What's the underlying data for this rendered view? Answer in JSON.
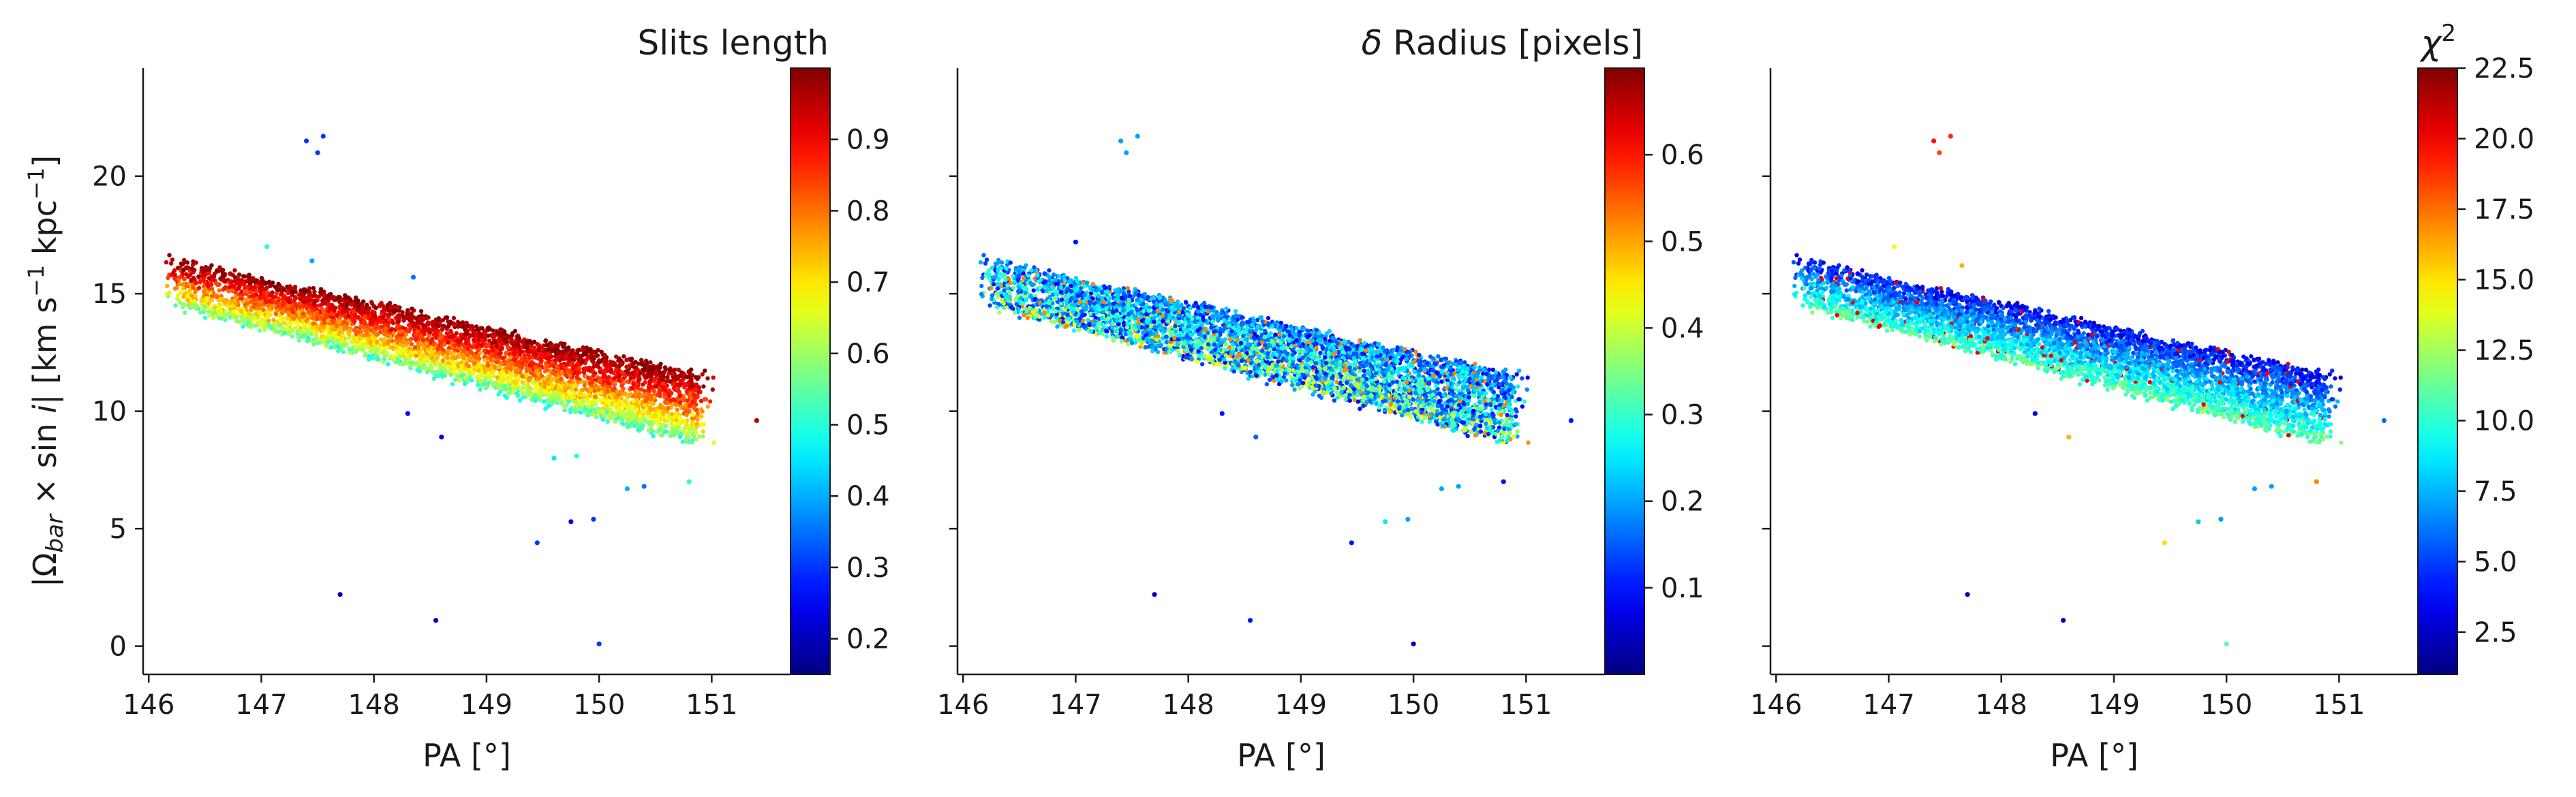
{
  "chart_data": [
    {
      "type": "scatter",
      "panel": "left",
      "xlabel": "PA [°]",
      "ylabel": "|Ω_bar × sin i|   [km s⁻¹ kpc⁻¹]",
      "xlim": [
        145.95,
        151.7
      ],
      "ylim": [
        -1.2,
        24.6
      ],
      "xticks": [
        "146",
        "147",
        "148",
        "149",
        "150",
        "151"
      ],
      "yticks": [
        "0",
        "5",
        "10",
        "15",
        "20"
      ],
      "colorbar": {
        "title": "Slits length",
        "range": [
          0.15,
          1.0
        ],
        "ticks": [
          "0.2",
          "0.3",
          "0.4",
          "0.5",
          "0.6",
          "0.7",
          "0.8",
          "0.9"
        ],
        "colormap": "jet",
        "trend": "increases with y"
      },
      "band": {
        "x_range": [
          146.2,
          151.4
        ],
        "y_top_start": 16.5,
        "y_top_end": 11.0,
        "y_bottom_start": 14.5,
        "y_bottom_end": 8.0,
        "n_points": 4500
      },
      "outliers": [
        {
          "x": 147.4,
          "y": 21.5,
          "c": 0.3
        },
        {
          "x": 147.5,
          "y": 21.0,
          "c": 0.3
        },
        {
          "x": 147.55,
          "y": 21.7,
          "c": 0.3
        },
        {
          "x": 147.7,
          "y": 2.2,
          "c": 0.2
        },
        {
          "x": 148.55,
          "y": 1.1,
          "c": 0.2
        },
        {
          "x": 150.0,
          "y": 0.1,
          "c": 0.3
        },
        {
          "x": 149.45,
          "y": 4.4,
          "c": 0.3
        },
        {
          "x": 149.75,
          "y": 5.3,
          "c": 0.25
        },
        {
          "x": 149.95,
          "y": 5.4,
          "c": 0.3
        },
        {
          "x": 148.3,
          "y": 9.9,
          "c": 0.25
        },
        {
          "x": 148.6,
          "y": 8.9,
          "c": 0.25
        },
        {
          "x": 150.25,
          "y": 6.7,
          "c": 0.4
        },
        {
          "x": 150.4,
          "y": 6.8,
          "c": 0.35
        },
        {
          "x": 150.8,
          "y": 7.0,
          "c": 0.5
        },
        {
          "x": 151.4,
          "y": 9.6,
          "c": 0.95
        },
        {
          "x": 147.05,
          "y": 17.0,
          "c": 0.5
        },
        {
          "x": 147.45,
          "y": 16.4,
          "c": 0.4
        },
        {
          "x": 148.35,
          "y": 15.7,
          "c": 0.35
        },
        {
          "x": 149.6,
          "y": 8.0,
          "c": 0.45
        },
        {
          "x": 149.8,
          "y": 8.1,
          "c": 0.5
        }
      ]
    },
    {
      "type": "scatter",
      "panel": "middle",
      "xlabel": "PA [°]",
      "ylabel": "",
      "xlim": [
        145.95,
        151.7
      ],
      "ylim": [
        -1.2,
        24.6
      ],
      "xticks": [
        "146",
        "147",
        "148",
        "149",
        "150",
        "151"
      ],
      "yticks": [
        "",
        "",
        "",
        "",
        ""
      ],
      "colorbar": {
        "title": "δ Radius [pixels]",
        "range": [
          0.0,
          0.7
        ],
        "ticks": [
          "0.1",
          "0.2",
          "0.3",
          "0.4",
          "0.5",
          "0.6"
        ],
        "colormap": "jet",
        "trend": "mostly low, higher near lower edge"
      },
      "band": {
        "x_range": [
          146.2,
          151.4
        ],
        "y_top_start": 16.5,
        "y_top_end": 11.0,
        "y_bottom_start": 14.5,
        "y_bottom_end": 8.0,
        "n_points": 4500
      },
      "outliers": [
        {
          "x": 147.4,
          "y": 21.5,
          "c": 0.2
        },
        {
          "x": 147.45,
          "y": 21.0,
          "c": 0.2
        },
        {
          "x": 147.55,
          "y": 21.7,
          "c": 0.2
        },
        {
          "x": 147.7,
          "y": 2.2,
          "c": 0.05
        },
        {
          "x": 148.55,
          "y": 1.1,
          "c": 0.1
        },
        {
          "x": 150.0,
          "y": 0.1,
          "c": 0.05
        },
        {
          "x": 149.45,
          "y": 4.4,
          "c": 0.1
        },
        {
          "x": 149.75,
          "y": 5.3,
          "c": 0.25
        },
        {
          "x": 149.95,
          "y": 5.4,
          "c": 0.2
        },
        {
          "x": 148.3,
          "y": 9.9,
          "c": 0.1
        },
        {
          "x": 148.6,
          "y": 8.9,
          "c": 0.15
        },
        {
          "x": 150.25,
          "y": 6.7,
          "c": 0.2
        },
        {
          "x": 150.4,
          "y": 6.8,
          "c": 0.2
        },
        {
          "x": 150.8,
          "y": 7.0,
          "c": 0.1
        },
        {
          "x": 151.4,
          "y": 9.6,
          "c": 0.1
        },
        {
          "x": 146.3,
          "y": 15.0,
          "c": 0.35
        },
        {
          "x": 147.0,
          "y": 17.2,
          "c": 0.1
        }
      ]
    },
    {
      "type": "scatter",
      "panel": "right",
      "xlabel": "PA [°]",
      "ylabel": "",
      "xlim": [
        145.95,
        151.7
      ],
      "ylim": [
        -1.2,
        24.6
      ],
      "xticks": [
        "146",
        "147",
        "148",
        "149",
        "150",
        "151"
      ],
      "yticks": [
        "",
        "",
        "",
        "",
        ""
      ],
      "colorbar": {
        "title": "χ²",
        "range": [
          1.0,
          22.5
        ],
        "ticks": [
          "2.5",
          "5.0",
          "7.5",
          "10.0",
          "12.5",
          "15.0",
          "17.5",
          "20.0",
          "22.5"
        ],
        "colormap": "jet",
        "trend": "lower on top edge, higher near lower edge"
      },
      "band": {
        "x_range": [
          146.2,
          151.4
        ],
        "y_top_start": 16.5,
        "y_top_end": 11.0,
        "y_bottom_start": 14.5,
        "y_bottom_end": 8.0,
        "n_points": 4500
      },
      "outliers": [
        {
          "x": 147.4,
          "y": 21.5,
          "c": 19.5
        },
        {
          "x": 147.45,
          "y": 21.0,
          "c": 18.5
        },
        {
          "x": 147.55,
          "y": 21.7,
          "c": 19.0
        },
        {
          "x": 147.7,
          "y": 2.2,
          "c": 2.0
        },
        {
          "x": 148.55,
          "y": 1.1,
          "c": 2.0
        },
        {
          "x": 150.0,
          "y": 0.1,
          "c": 11.0
        },
        {
          "x": 149.45,
          "y": 4.4,
          "c": 15.0
        },
        {
          "x": 149.75,
          "y": 5.3,
          "c": 8.0
        },
        {
          "x": 149.95,
          "y": 5.4,
          "c": 7.0
        },
        {
          "x": 148.3,
          "y": 9.9,
          "c": 3.5
        },
        {
          "x": 148.6,
          "y": 8.9,
          "c": 16.0
        },
        {
          "x": 150.25,
          "y": 6.7,
          "c": 7.0
        },
        {
          "x": 150.4,
          "y": 6.8,
          "c": 7.0
        },
        {
          "x": 150.8,
          "y": 7.0,
          "c": 17.0
        },
        {
          "x": 151.4,
          "y": 9.6,
          "c": 6.0
        },
        {
          "x": 147.05,
          "y": 17.0,
          "c": 14.0
        },
        {
          "x": 147.65,
          "y": 16.2,
          "c": 16.0
        }
      ]
    }
  ]
}
